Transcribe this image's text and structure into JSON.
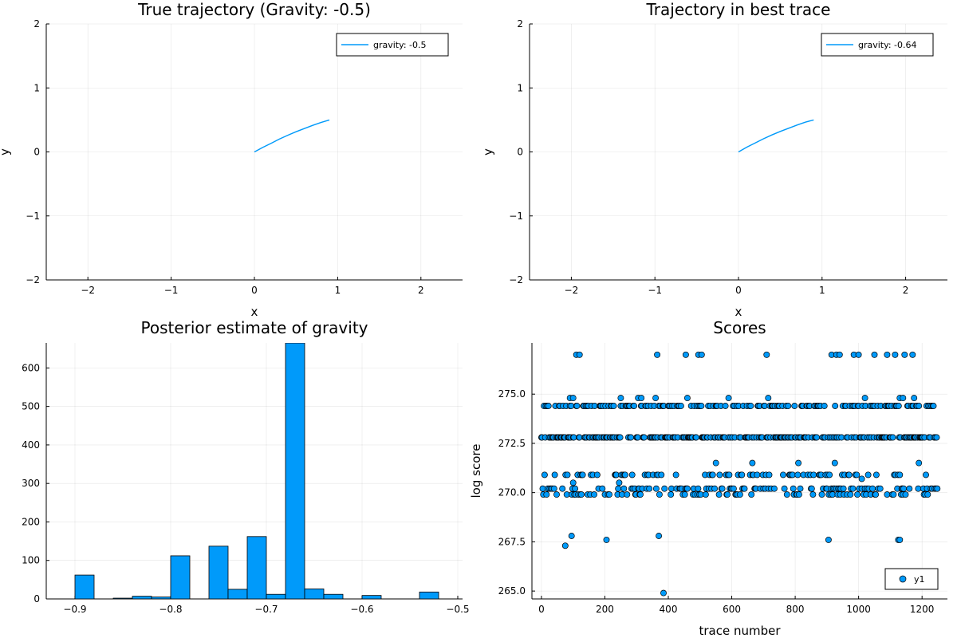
{
  "chart_data": [
    {
      "type": "line",
      "title": "True trajectory (Gravity: -0.5)",
      "xlabel": "x",
      "ylabel": "y",
      "xlim": [
        -2.5,
        2.5
      ],
      "ylim": [
        -2,
        2
      ],
      "xticks": [
        -2,
        -1,
        0,
        1,
        2
      ],
      "yticks": [
        -2,
        -1,
        0,
        1,
        2
      ],
      "grid": true,
      "legend": "top-right",
      "color": "#009AFA",
      "series": [
        {
          "name": "gravity: -0.5",
          "x": [
            0.0,
            0.1,
            0.2,
            0.3,
            0.4,
            0.5,
            0.6,
            0.7,
            0.8,
            0.9
          ],
          "y": [
            0.0,
            0.07,
            0.135,
            0.2,
            0.26,
            0.315,
            0.365,
            0.415,
            0.46,
            0.5
          ]
        }
      ]
    },
    {
      "type": "line",
      "title": "Trajectory in best trace",
      "xlabel": "x",
      "ylabel": "y",
      "xlim": [
        -2.5,
        2.5
      ],
      "ylim": [
        -2,
        2
      ],
      "xticks": [
        -2,
        -1,
        0,
        1,
        2
      ],
      "yticks": [
        -2,
        -1,
        0,
        1,
        2
      ],
      "grid": true,
      "legend": "top-right",
      "color": "#009AFA",
      "series": [
        {
          "name": "gravity: -0.64",
          "x": [
            0.0,
            0.1,
            0.2,
            0.3,
            0.4,
            0.5,
            0.6,
            0.7,
            0.8,
            0.9
          ],
          "y": [
            0.0,
            0.075,
            0.14,
            0.205,
            0.265,
            0.32,
            0.37,
            0.42,
            0.465,
            0.5
          ]
        }
      ]
    },
    {
      "type": "bar",
      "title": "Posterior estimate of gravity",
      "xlabel": "",
      "ylabel": "",
      "xlim": [
        -0.93,
        -0.495
      ],
      "ylim": [
        0,
        665
      ],
      "xticks": [
        -0.9,
        -0.8,
        -0.7,
        -0.6,
        -0.5
      ],
      "xtick_labels": [
        "−0.9",
        "−0.8",
        "−0.7",
        "−0.6",
        "−0.5"
      ],
      "yticks": [
        0,
        100,
        200,
        300,
        400,
        500,
        600
      ],
      "grid": true,
      "color": "#009AFA",
      "bin_width": 0.02,
      "bin_starts": [
        -0.9,
        -0.86,
        -0.84,
        -0.82,
        -0.8,
        -0.76,
        -0.74,
        -0.72,
        -0.7,
        -0.68,
        -0.66,
        -0.64,
        -0.6,
        -0.54
      ],
      "values": [
        62,
        2,
        7,
        5,
        112,
        137,
        25,
        162,
        12,
        665,
        26,
        12,
        9,
        18
      ]
    },
    {
      "type": "scatter",
      "title": "Scores",
      "xlabel": "trace number",
      "ylabel": "log score",
      "xlim": [
        -30,
        1280
      ],
      "ylim": [
        264.6,
        277.6
      ],
      "xticks": [
        0,
        200,
        400,
        600,
        800,
        1000,
        1200
      ],
      "yticks": [
        265.0,
        267.5,
        270.0,
        272.5,
        275.0
      ],
      "ytick_labels": [
        "265.0",
        "267.5",
        "270.0",
        "272.5",
        "275.0"
      ],
      "grid": true,
      "legend": "bottom-right",
      "color": "#009AFA",
      "series_name": "y1",
      "levels": [
        269.9,
        270.2,
        270.9,
        272.8,
        274.4
      ],
      "point_count": 1250,
      "outliers": [
        [
          75,
          267.3
        ],
        [
          95,
          267.8
        ],
        [
          205,
          267.6
        ],
        [
          370,
          267.8
        ],
        [
          385,
          264.9
        ],
        [
          905,
          267.6
        ],
        [
          1125,
          267.6
        ],
        [
          1130,
          267.6
        ],
        [
          90,
          274.8
        ],
        [
          100,
          274.8
        ],
        [
          250,
          274.8
        ],
        [
          305,
          274.8
        ],
        [
          315,
          274.8
        ],
        [
          360,
          274.8
        ],
        [
          460,
          274.8
        ],
        [
          590,
          274.8
        ],
        [
          715,
          274.8
        ],
        [
          1020,
          274.8
        ],
        [
          1130,
          274.8
        ],
        [
          1140,
          274.8
        ],
        [
          1175,
          274.8
        ],
        [
          110,
          277.0
        ],
        [
          120,
          277.0
        ],
        [
          365,
          277.0
        ],
        [
          455,
          277.0
        ],
        [
          495,
          277.0
        ],
        [
          505,
          277.0
        ],
        [
          710,
          277.0
        ],
        [
          915,
          277.0
        ],
        [
          930,
          277.0
        ],
        [
          940,
          277.0
        ],
        [
          985,
          277.0
        ],
        [
          1000,
          277.0
        ],
        [
          1050,
          277.0
        ],
        [
          1090,
          277.0
        ],
        [
          1115,
          277.0
        ],
        [
          1145,
          277.0
        ],
        [
          1170,
          277.0
        ],
        [
          100,
          270.5
        ],
        [
          245,
          270.5
        ],
        [
          550,
          271.5
        ],
        [
          665,
          271.5
        ],
        [
          810,
          271.5
        ],
        [
          925,
          271.5
        ],
        [
          1190,
          271.5
        ],
        [
          1010,
          270.7
        ]
      ]
    }
  ]
}
